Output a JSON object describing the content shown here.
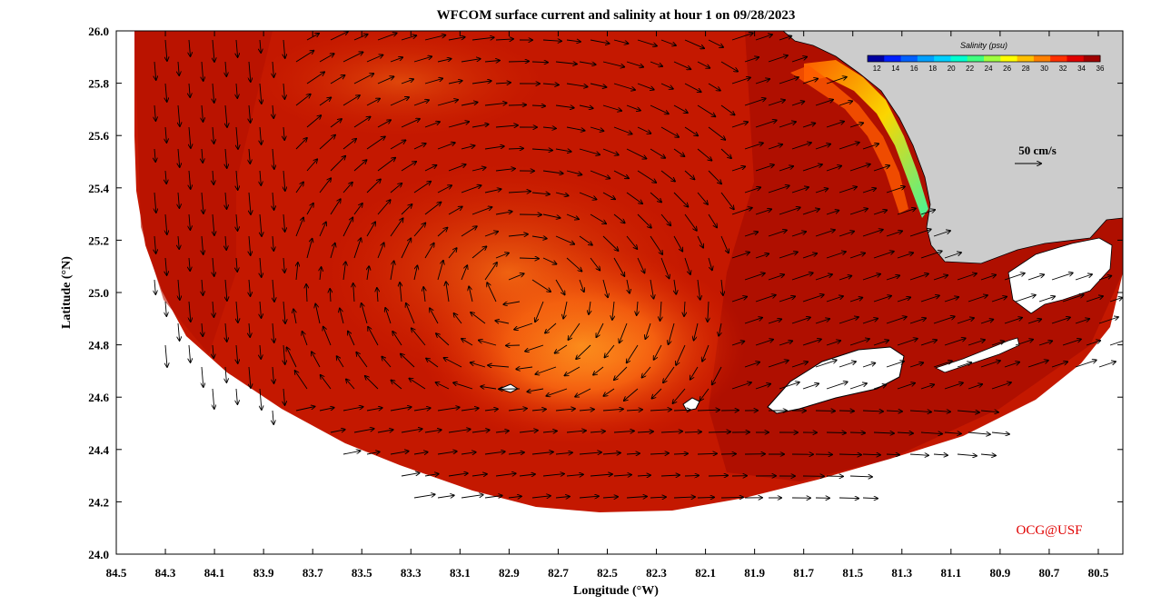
{
  "title": "WFCOM surface current and salinity at hour 1 on 09/28/2023",
  "x_axis_label": "Longitude (°W)",
  "y_axis_label": "Latitude (°N)",
  "x_ticks": [
    "84.5",
    "84.3",
    "84.1",
    "83.9",
    "83.7",
    "83.5",
    "83.3",
    "83.1",
    "82.9",
    "82.7",
    "82.5",
    "82.3",
    "82.1",
    "81.9",
    "81.7",
    "81.5",
    "81.3",
    "81.1",
    "80.9",
    "80.7",
    "80.5"
  ],
  "y_ticks": [
    "26.0",
    "25.8",
    "25.6",
    "25.4",
    "25.2",
    "25.0",
    "24.8",
    "24.6",
    "24.4",
    "24.2",
    "24.0"
  ],
  "colorbar": {
    "title": "Salinity (psu)",
    "tick_labels": [
      "12",
      "14",
      "16",
      "18",
      "20",
      "22",
      "24",
      "26",
      "28",
      "30",
      "32",
      "34",
      "36"
    ],
    "colors": [
      "#0000a0",
      "#0020ff",
      "#0060ff",
      "#00a0ff",
      "#00d0ff",
      "#00ffd0",
      "#40ff80",
      "#a0ff40",
      "#ffff00",
      "#ffc000",
      "#ff8000",
      "#ff3000",
      "#e00000",
      "#a00000"
    ]
  },
  "scale_vector": {
    "label": "50 cm/s"
  },
  "credit": "OCG@USF",
  "colors": {
    "land": "#cccccc",
    "ocean_base": "#c81400",
    "ocean_dark": "#a80a00",
    "warm_core": "#ff6a10",
    "arrow": "#000000"
  },
  "chart_data": {
    "type": "heatmap",
    "variable": "salinity",
    "xlim": [
      84.5,
      80.4
    ],
    "ylim": [
      24.0,
      26.0
    ],
    "clim": [
      11,
      36
    ]
  }
}
